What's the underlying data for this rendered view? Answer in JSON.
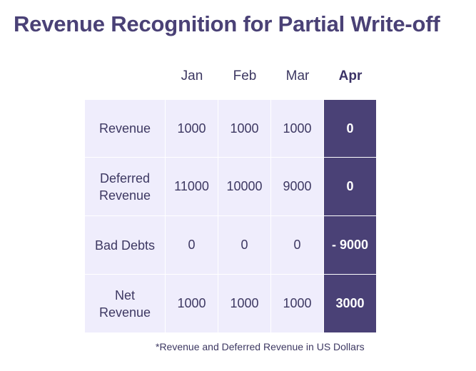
{
  "title": "Revenue Recognition for Partial Write-off",
  "months": [
    "Jan",
    "Feb",
    "Mar",
    "Apr"
  ],
  "rows": [
    {
      "label": "Revenue",
      "values": [
        "1000",
        "1000",
        "1000",
        "0"
      ]
    },
    {
      "label": "Deferred Revenue",
      "values": [
        "11000",
        "10000",
        "9000",
        "0"
      ]
    },
    {
      "label": "Bad Debts",
      "values": [
        "0",
        "0",
        "0",
        "- 9000"
      ]
    },
    {
      "label": "Net Revenue",
      "values": [
        "1000",
        "1000",
        "1000",
        "3000"
      ]
    }
  ],
  "footnote": "*Revenue and Deferred Revenue in US Dollars",
  "colors": {
    "accent": "#4a4176",
    "cell_background": "#efedfc",
    "text": "#3d3862"
  }
}
